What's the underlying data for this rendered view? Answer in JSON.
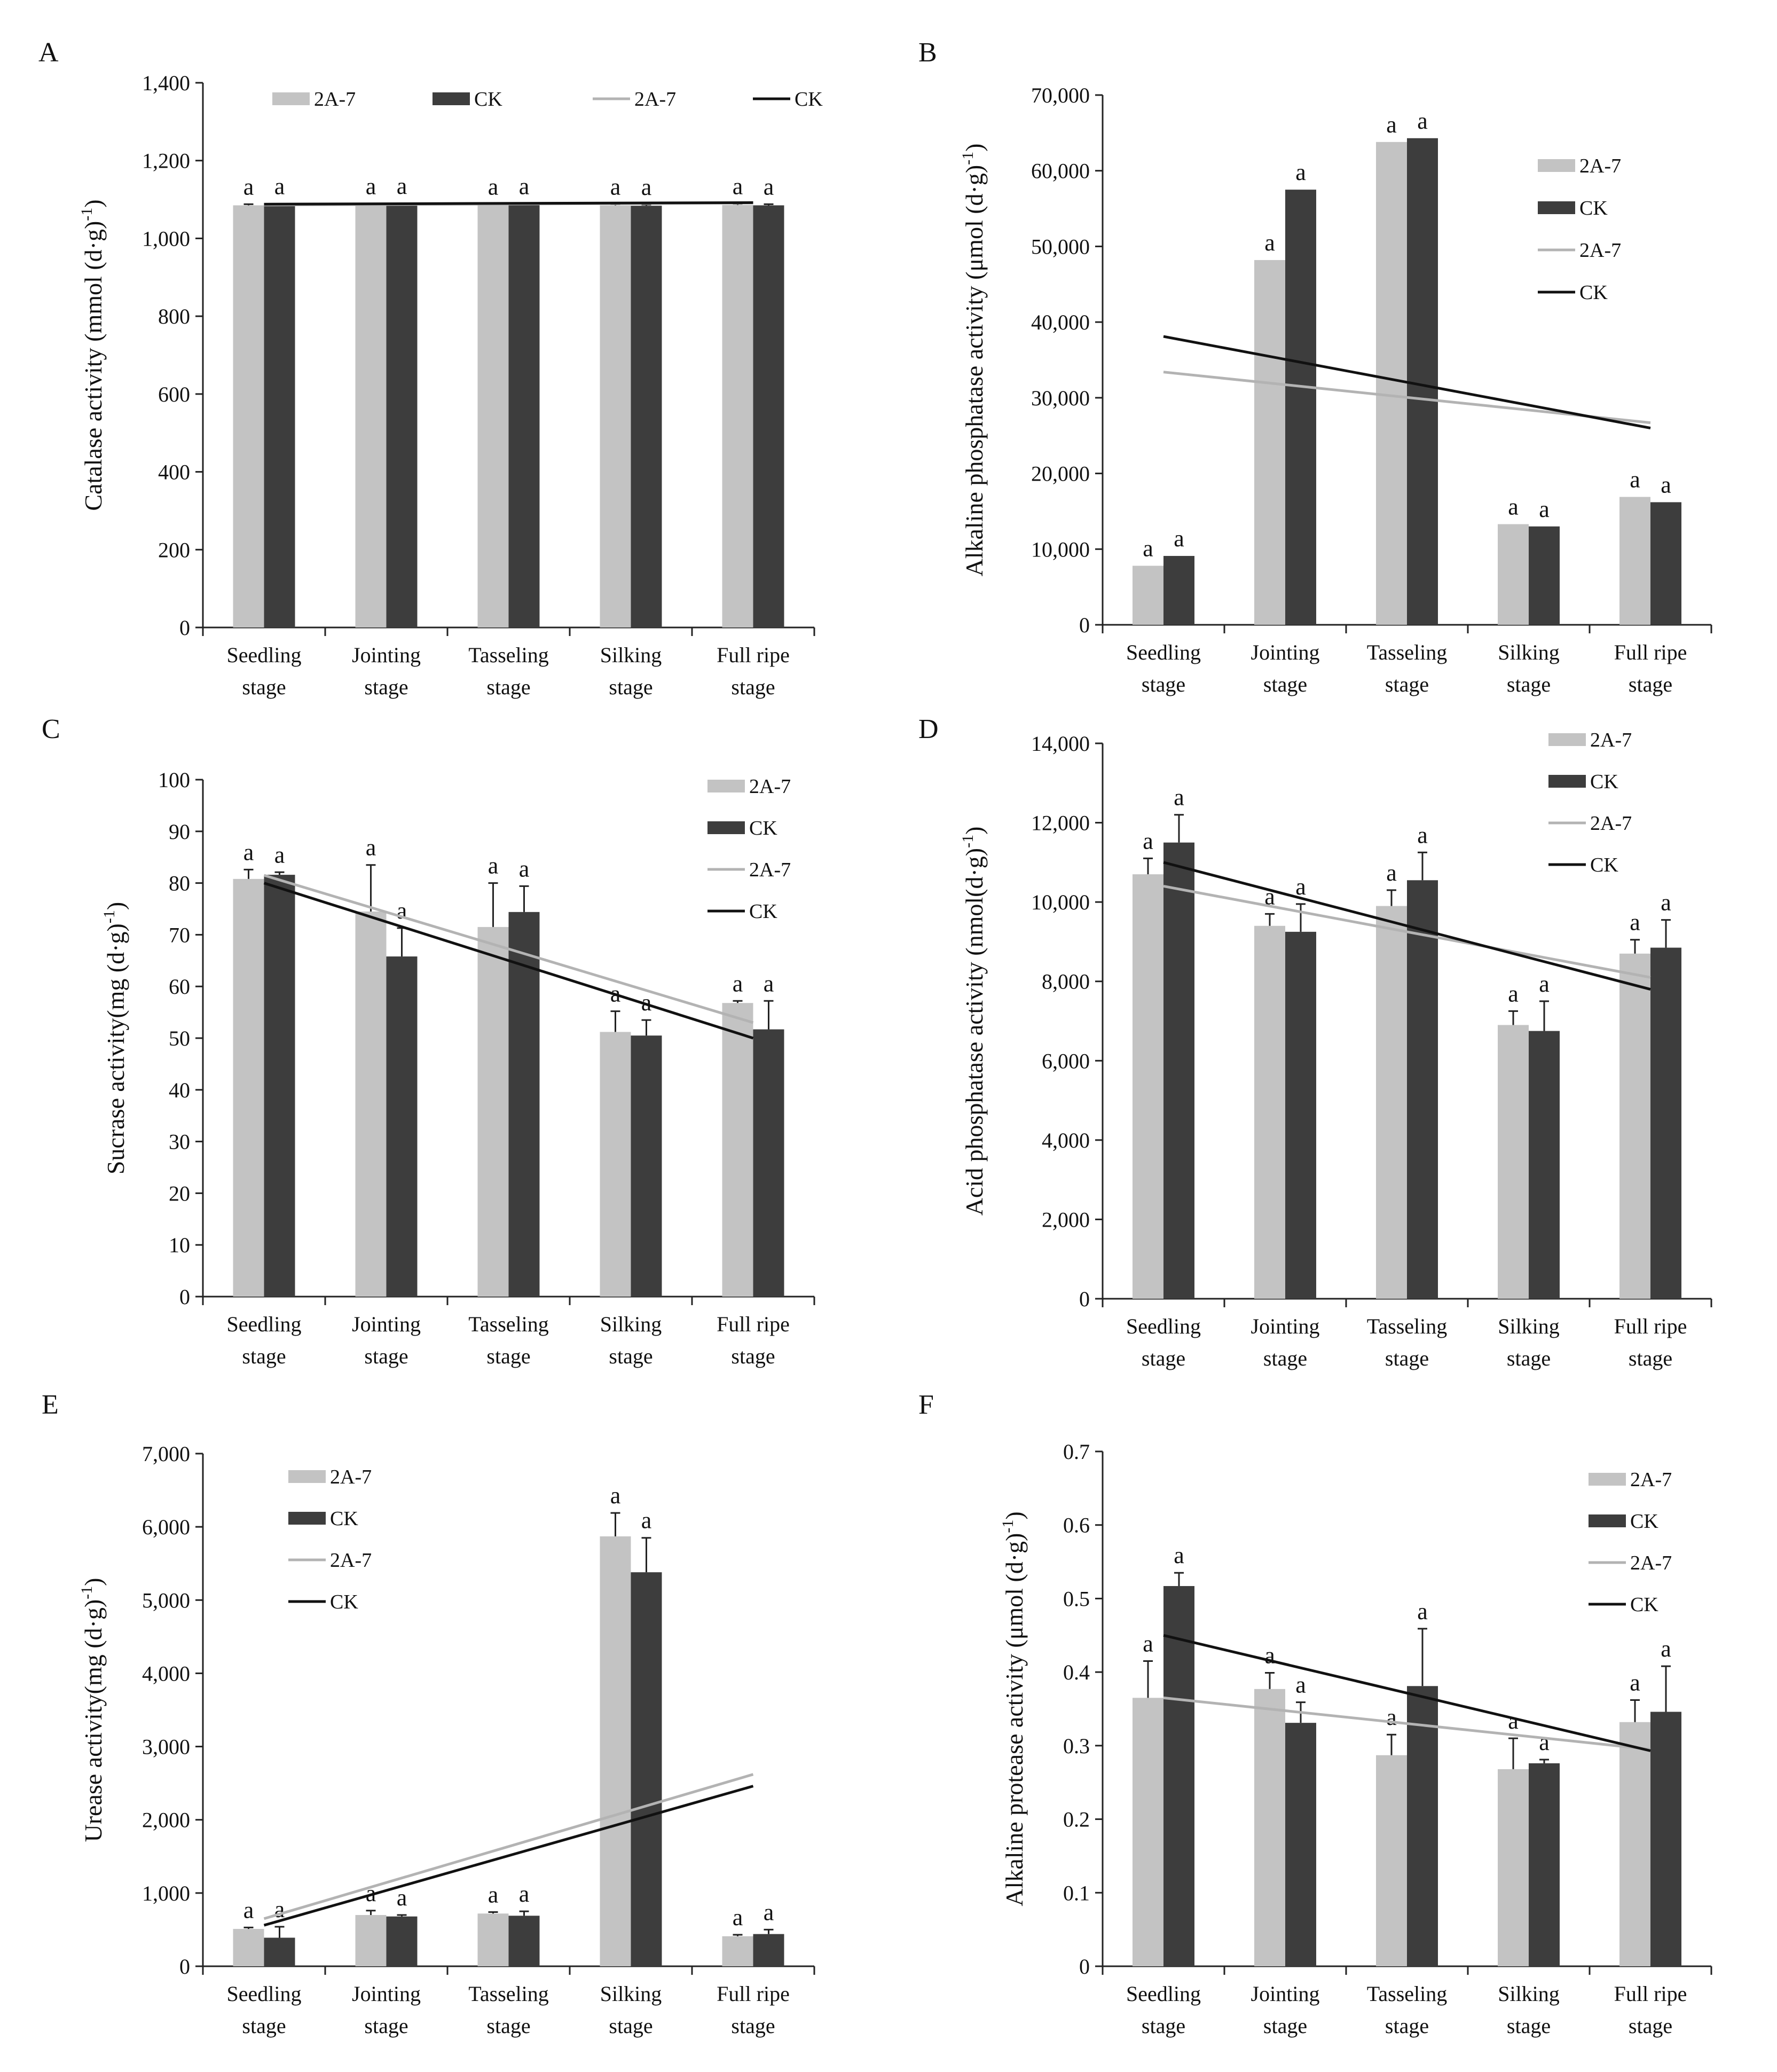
{
  "figure": {
    "colors": {
      "bar_2a7": "#c3c3c3",
      "bar_ck": "#3d3d3d",
      "line_2a7": "#b3b3b3",
      "line_ck": "#111111",
      "axis": "#222222"
    }
  },
  "chart_data": [
    {
      "panel_label": "A",
      "type": "bar",
      "ylabel": "Catalase activity (mmol (d·g)-1)",
      "ylabel_main": "Catalase activity (mmol (d·g)",
      "ylabel_sup": "-1",
      "ylabel_close": ")",
      "ylim": [
        0,
        1400
      ],
      "yticks": [
        0,
        200,
        400,
        600,
        800,
        1000,
        1200,
        1400
      ],
      "ytick_labels": [
        "0",
        "200",
        "400",
        "600",
        "800",
        "1,000",
        "1,200",
        "1,400"
      ],
      "categories": [
        [
          "Seedling",
          "stage"
        ],
        [
          "Jointing",
          "stage"
        ],
        [
          "Tasseling",
          "stage"
        ],
        [
          "Silking",
          "stage"
        ],
        [
          "Full ripe",
          "stage"
        ]
      ],
      "series": [
        {
          "name": "2A-7",
          "values": [
            1085,
            1086,
            1085,
            1085,
            1086
          ],
          "errors": [
            3,
            3,
            3,
            3,
            3
          ],
          "letters": [
            "a",
            "a",
            "a",
            "a",
            "a"
          ]
        },
        {
          "name": "CK",
          "values": [
            1086,
            1087,
            1086,
            1084,
            1085
          ],
          "errors": [
            3,
            3,
            3,
            3,
            3
          ],
          "letters": [
            "a",
            "a",
            "a",
            "a",
            "a"
          ]
        }
      ],
      "trendlines": [
        {
          "name": "2A-7",
          "start": 1086,
          "end": 1091
        },
        {
          "name": "CK",
          "start": 1088,
          "end": 1092
        }
      ],
      "legend": {
        "position": "top-horizontal",
        "entries": [
          "2A-7",
          "CK",
          "2A-7",
          "CK"
        ]
      }
    },
    {
      "panel_label": "B",
      "type": "bar",
      "ylabel": "Alkaline phosphatase activity (μmol (d·g)-1)",
      "ylabel_main": "Alkaline phosphatase activity (μmol (d·g)",
      "ylabel_sup": "-1",
      "ylabel_close": ")",
      "ylim": [
        0,
        70000
      ],
      "yticks": [
        0,
        10000,
        20000,
        30000,
        40000,
        50000,
        60000,
        70000
      ],
      "ytick_labels": [
        "0",
        "10,000",
        "20,000",
        "30,000",
        "40,000",
        "50,000",
        "60,000",
        "70,000"
      ],
      "categories": [
        [
          "Seedling",
          "stage"
        ],
        [
          "Jointing",
          "stage"
        ],
        [
          "Tasseling",
          "stage"
        ],
        [
          "Silking",
          "stage"
        ],
        [
          "Full ripe",
          "stage"
        ]
      ],
      "series": [
        {
          "name": "2A-7",
          "values": [
            7800,
            48200,
            63800,
            13300,
            16900
          ],
          "errors": [
            0,
            0,
            0,
            0,
            0
          ],
          "letters": [
            "a",
            "a",
            "a",
            "a",
            "a"
          ]
        },
        {
          "name": "CK",
          "values": [
            9100,
            57500,
            64300,
            13000,
            16200
          ],
          "errors": [
            0,
            0,
            0,
            0,
            0
          ],
          "letters": [
            "a",
            "a",
            "a",
            "a",
            "a"
          ]
        }
      ],
      "trendlines": [
        {
          "name": "2A-7",
          "start": 33400,
          "end": 26700
        },
        {
          "name": "CK",
          "start": 38100,
          "end": 26000
        }
      ],
      "legend": {
        "position": "right-vertical",
        "entries": [
          "2A-7",
          "CK",
          "2A-7",
          "CK"
        ]
      }
    },
    {
      "panel_label": "C",
      "type": "bar",
      "ylabel": "Sucrase activity(mg (d·g)-1)",
      "ylabel_main": "Sucrase activity(mg (d·g)",
      "ylabel_sup": "-1",
      "ylabel_close": ")",
      "ylim": [
        0,
        100
      ],
      "yticks": [
        0,
        10,
        20,
        30,
        40,
        50,
        60,
        70,
        80,
        90,
        100
      ],
      "ytick_labels": [
        "0",
        "10",
        "20",
        "30",
        "40",
        "50",
        "60",
        "70",
        "80",
        "90",
        "100"
      ],
      "categories": [
        [
          "Seedling",
          "stage"
        ],
        [
          "Jointing",
          "stage"
        ],
        [
          "Tasseling",
          "stage"
        ],
        [
          "Silking",
          "stage"
        ],
        [
          "Full ripe",
          "stage"
        ]
      ],
      "series": [
        {
          "name": "2A-7",
          "values": [
            80.8,
            74.5,
            71.5,
            51.2,
            56.8
          ],
          "errors": [
            1.8,
            9.0,
            8.5,
            4.0,
            0.4
          ],
          "letters": [
            "a",
            "a",
            "a",
            "a",
            "a"
          ]
        },
        {
          "name": "CK",
          "values": [
            81.6,
            65.8,
            74.4,
            50.5,
            51.7
          ],
          "errors": [
            0.5,
            5.5,
            5.0,
            3.0,
            5.5
          ],
          "letters": [
            "a",
            "a",
            "a",
            "a",
            "a"
          ]
        }
      ],
      "trendlines": [
        {
          "name": "2A-7",
          "start": 81.5,
          "end": 53.0
        },
        {
          "name": "CK",
          "start": 80.0,
          "end": 50.0
        }
      ],
      "legend": {
        "position": "right-vertical",
        "entries": [
          "2A-7",
          "CK",
          "2A-7",
          "CK"
        ]
      }
    },
    {
      "panel_label": "D",
      "type": "bar",
      "ylabel": "Acid phosphatase activity (nmol(d·g)-1)",
      "ylabel_main": "Acid phosphatase activity (nmol(d·g)",
      "ylabel_sup": "-1",
      "ylabel_close": ")",
      "ylim": [
        0,
        14000
      ],
      "yticks": [
        0,
        2000,
        4000,
        6000,
        8000,
        10000,
        12000,
        14000
      ],
      "ytick_labels": [
        "0",
        "2,000",
        "4,000",
        "6,000",
        "8,000",
        "10,000",
        "12,000",
        "14,000"
      ],
      "categories": [
        [
          "Seedling",
          "stage"
        ],
        [
          "Jointing",
          "stage"
        ],
        [
          "Tasseling",
          "stage"
        ],
        [
          "Silking",
          "stage"
        ],
        [
          "Full ripe",
          "stage"
        ]
      ],
      "series": [
        {
          "name": "2A-7",
          "values": [
            10700,
            9400,
            9900,
            6900,
            8700
          ],
          "errors": [
            400,
            300,
            400,
            350,
            350
          ],
          "letters": [
            "a",
            "a",
            "a",
            "a",
            "a"
          ]
        },
        {
          "name": "CK",
          "values": [
            11500,
            9250,
            10550,
            6750,
            8850
          ],
          "errors": [
            700,
            700,
            700,
            750,
            700
          ],
          "letters": [
            "a",
            "a",
            "a",
            "a",
            "a"
          ]
        }
      ],
      "trendlines": [
        {
          "name": "2A-7",
          "start": 10400,
          "end": 8100
        },
        {
          "name": "CK",
          "start": 11000,
          "end": 7800
        }
      ],
      "legend": {
        "position": "top-right-vertical",
        "entries": [
          "2A-7",
          "CK",
          "2A-7",
          "CK"
        ]
      }
    },
    {
      "panel_label": "E",
      "type": "bar",
      "ylabel": "Urease activity(mg (d·g)-1)",
      "ylabel_main": "Urease activity(mg (d·g)",
      "ylabel_sup": "-1",
      "ylabel_close": ")",
      "ylim": [
        0,
        7000
      ],
      "yticks": [
        0,
        1000,
        2000,
        3000,
        4000,
        5000,
        6000,
        7000
      ],
      "ytick_labels": [
        "0",
        "1,000",
        "2,000",
        "3,000",
        "4,000",
        "5,000",
        "6,000",
        "7,000"
      ],
      "categories": [
        [
          "Seedling",
          "stage"
        ],
        [
          "Jointing",
          "stage"
        ],
        [
          "Tasseling",
          "stage"
        ],
        [
          "Silking",
          "stage"
        ],
        [
          "Full ripe",
          "stage"
        ]
      ],
      "series": [
        {
          "name": "2A-7",
          "values": [
            510,
            700,
            720,
            5870,
            410
          ],
          "errors": [
            20,
            60,
            20,
            320,
            20
          ],
          "letters": [
            "a",
            "a",
            "a",
            "a",
            "a"
          ]
        },
        {
          "name": "CK",
          "values": [
            390,
            680,
            690,
            5380,
            440
          ],
          "errors": [
            150,
            20,
            60,
            470,
            60
          ],
          "letters": [
            "a",
            "a",
            "a",
            "a",
            "a"
          ]
        }
      ],
      "trendlines": [
        {
          "name": "2A-7",
          "start": 650,
          "end": 2620
        },
        {
          "name": "CK",
          "start": 560,
          "end": 2460
        }
      ],
      "legend": {
        "position": "top-left-vertical",
        "entries": [
          "2A-7",
          "CK",
          "2A-7",
          "CK"
        ]
      }
    },
    {
      "panel_label": "F",
      "type": "bar",
      "ylabel": "Alkaline protease activity (μmol (d·g)-1)",
      "ylabel_main": "Alkaline protease activity (μmol (d·g)",
      "ylabel_sup": "-1",
      "ylabel_close": ")",
      "ylim": [
        0,
        0.7
      ],
      "yticks": [
        0,
        0.1,
        0.2,
        0.3,
        0.4,
        0.5,
        0.6,
        0.7
      ],
      "ytick_labels": [
        "0",
        "0.1",
        "0.2",
        "0.3",
        "0.4",
        "0.5",
        "0.6",
        "0.7"
      ],
      "categories": [
        [
          "Seedling",
          "stage"
        ],
        [
          "Jointing",
          "stage"
        ],
        [
          "Tasseling",
          "stage"
        ],
        [
          "Silking",
          "stage"
        ],
        [
          "Full ripe",
          "stage"
        ]
      ],
      "series": [
        {
          "name": "2A-7",
          "values": [
            0.365,
            0.377,
            0.287,
            0.268,
            0.332
          ],
          "errors": [
            0.05,
            0.022,
            0.028,
            0.042,
            0.03
          ],
          "letters": [
            "a",
            "a",
            "a",
            "a",
            "a"
          ]
        },
        {
          "name": "CK",
          "values": [
            0.517,
            0.331,
            0.381,
            0.276,
            0.346
          ],
          "errors": [
            0.018,
            0.028,
            0.078,
            0.005,
            0.062
          ],
          "letters": [
            "a",
            "a",
            "a",
            "a",
            "a"
          ]
        }
      ],
      "trendlines": [
        {
          "name": "2A-7",
          "start": 0.365,
          "end": 0.295
        },
        {
          "name": "CK",
          "start": 0.45,
          "end": 0.293
        }
      ],
      "legend": {
        "position": "right-vertical",
        "entries": [
          "2A-7",
          "CK",
          "2A-7",
          "CK"
        ]
      }
    }
  ]
}
